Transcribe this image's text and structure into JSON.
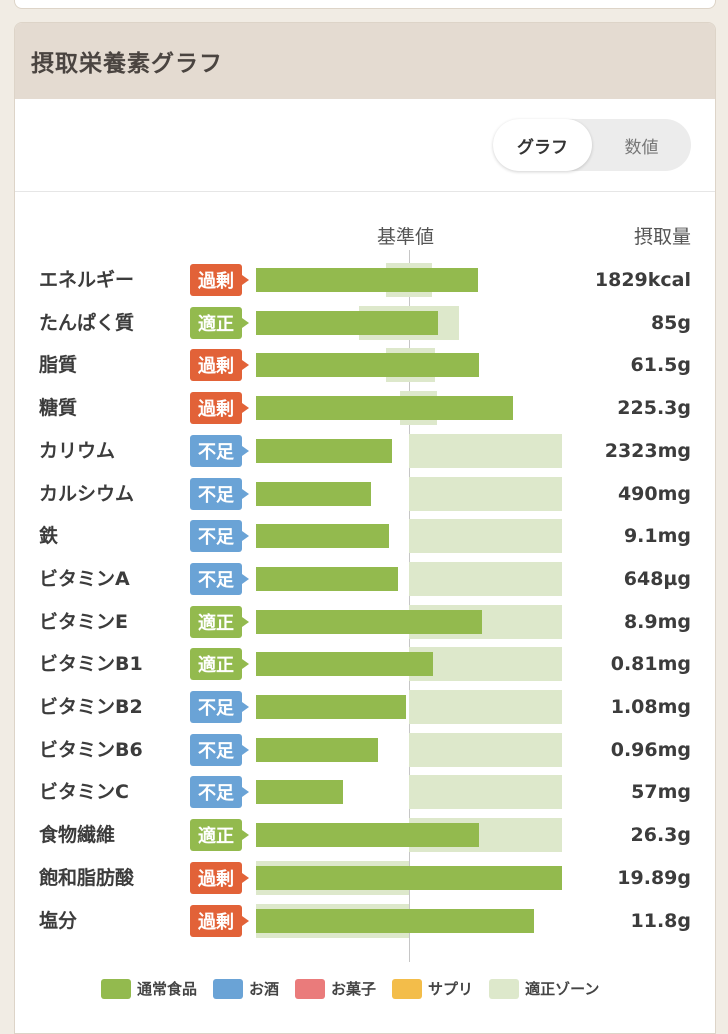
{
  "panel": {
    "title": "摂取栄養素グラフ"
  },
  "toggle": {
    "graph_label": "グラフ",
    "number_label": "数値",
    "selected": "グラフ"
  },
  "columns": {
    "base_label": "基準値",
    "intake_label": "摂取量"
  },
  "colors": {
    "over": "#e26238",
    "ok": "#93ba4e",
    "low": "#6aa3d6",
    "bar": "#93ba4e",
    "zone": "#dde8cb"
  },
  "nutrients": [
    {
      "name": "エネルギー",
      "status": "過剰",
      "status_type": "over",
      "value": "1829kcal",
      "ratio": 1.45,
      "zone": [
        0.85,
        1.15
      ]
    },
    {
      "name": "たんぱく質",
      "status": "適正",
      "status_type": "ok",
      "value": "85g",
      "ratio": 1.19,
      "zone": [
        0.67,
        1.33
      ]
    },
    {
      "name": "脂質",
      "status": "過剰",
      "status_type": "over",
      "value": "61.5g",
      "ratio": 1.46,
      "zone": [
        0.85,
        1.17
      ]
    },
    {
      "name": "糖質",
      "status": "過剰",
      "status_type": "over",
      "value": "225.3g",
      "ratio": 1.68,
      "zone": [
        0.94,
        1.18
      ]
    },
    {
      "name": "カリウム",
      "status": "不足",
      "status_type": "low",
      "value": "2323mg",
      "ratio": 0.89,
      "zone": [
        1.0,
        2.0
      ]
    },
    {
      "name": "カルシウム",
      "status": "不足",
      "status_type": "low",
      "value": "490mg",
      "ratio": 0.75,
      "zone": [
        1.0,
        2.0
      ]
    },
    {
      "name": "鉄",
      "status": "不足",
      "status_type": "low",
      "value": "9.1mg",
      "ratio": 0.87,
      "zone": [
        1.0,
        2.0
      ]
    },
    {
      "name": "ビタミンA",
      "status": "不足",
      "status_type": "low",
      "value": "648µg",
      "ratio": 0.93,
      "zone": [
        1.0,
        2.0
      ]
    },
    {
      "name": "ビタミンE",
      "status": "適正",
      "status_type": "ok",
      "value": "8.9mg",
      "ratio": 1.48,
      "zone": [
        1.0,
        2.0
      ]
    },
    {
      "name": "ビタミンB1",
      "status": "適正",
      "status_type": "ok",
      "value": "0.81mg",
      "ratio": 1.16,
      "zone": [
        1.0,
        2.0
      ]
    },
    {
      "name": "ビタミンB2",
      "status": "不足",
      "status_type": "low",
      "value": "1.08mg",
      "ratio": 0.98,
      "zone": [
        1.0,
        2.0
      ]
    },
    {
      "name": "ビタミンB6",
      "status": "不足",
      "status_type": "low",
      "value": "0.96mg",
      "ratio": 0.8,
      "zone": [
        1.0,
        2.0
      ]
    },
    {
      "name": "ビタミンC",
      "status": "不足",
      "status_type": "low",
      "value": "57mg",
      "ratio": 0.57,
      "zone": [
        1.0,
        2.0
      ]
    },
    {
      "name": "食物繊維",
      "status": "適正",
      "status_type": "ok",
      "value": "26.3g",
      "ratio": 1.46,
      "zone": [
        1.0,
        2.0
      ]
    },
    {
      "name": "飽和脂肪酸",
      "status": "過剰",
      "status_type": "over",
      "value": "19.89g",
      "ratio": 2.0,
      "zone": [
        0.0,
        1.0
      ]
    },
    {
      "name": "塩分",
      "status": "過剰",
      "status_type": "over",
      "value": "11.8g",
      "ratio": 1.82,
      "zone": [
        0.0,
        1.0
      ]
    }
  ],
  "legend": [
    {
      "label": "通常食品",
      "color": "#93ba4e"
    },
    {
      "label": "お酒",
      "color": "#6aa3d6"
    },
    {
      "label": "お菓子",
      "color": "#ea7b7b"
    },
    {
      "label": "サプリ",
      "color": "#f3bd4a"
    },
    {
      "label": "適正ゾーン",
      "color": "#dde8cb"
    }
  ]
}
